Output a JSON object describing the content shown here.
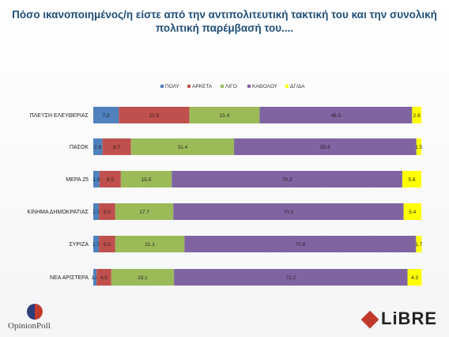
{
  "title": "Πόσο ικανοποιημένος/η είστε από την αντιπολιτευτική τακτική του και την συνολική πολιτική παρέμβασή του....",
  "logos": {
    "left_text": "OpinionPoll",
    "right_text": "LiBRE"
  },
  "chart_data": {
    "type": "bar",
    "orientation": "horizontal",
    "stacked": true,
    "xlim": [
      0,
      100
    ],
    "categories": [
      "ΠΛΕΥΣΗ ΕΛΕΥΘΕΡΙΑΣ",
      "ΠΑΣΟΚ",
      "ΜΕΡΑ 25",
      "ΚΙΝΗΜΑ ΔΗΜΟΚΡΑΤΙΑΣ",
      "ΣΥΡΙΖΑ",
      "ΝΕΑ ΑΡΙΣΤΕΡΑ"
    ],
    "series": [
      {
        "name": "ΠΟΛΥ",
        "color": "#4f81bd",
        "values": [
          7.8,
          2.8,
          1.9,
          1.7,
          1.7,
          1.0
        ],
        "labels": [
          "7.8",
          "2.8",
          "1.9",
          "1.7",
          "1.7",
          "1.0"
        ]
      },
      {
        "name": "ΑΡΚΕΤΑ",
        "color": "#c0504d",
        "values": [
          21.5,
          8.7,
          6.5,
          5.0,
          5.0,
          4.5
        ],
        "labels": [
          "21.5",
          "8.7",
          "6.5",
          "5.0",
          "5.0",
          "4.5"
        ]
      },
      {
        "name": "ΛΙΓΟ",
        "color": "#9bbb59",
        "values": [
          21.4,
          31.4,
          15.5,
          17.7,
          21.1,
          19.1
        ],
        "labels": [
          "21.4",
          "31.4",
          "15.5",
          "17.7",
          "21.1",
          "19.1"
        ]
      },
      {
        "name": "ΚΑΘΟΛΟΥ",
        "color": "#8064a2",
        "values": [
          46.5,
          55.6,
          70.3,
          70.2,
          70.6,
          71.2
        ],
        "labels": [
          "46.5",
          "55.6",
          "70.3",
          "70.2",
          "70.6",
          "71.2"
        ]
      },
      {
        "name": "ΔΓ/ΔΑ",
        "color": "#ffff00",
        "values": [
          2.8,
          1.5,
          5.8,
          5.4,
          1.7,
          4.3
        ],
        "labels": [
          "2.8",
          "1.5",
          "5.8",
          "5.4",
          "1.7",
          "4.3"
        ]
      }
    ],
    "legend_position": "top",
    "grid": false
  }
}
